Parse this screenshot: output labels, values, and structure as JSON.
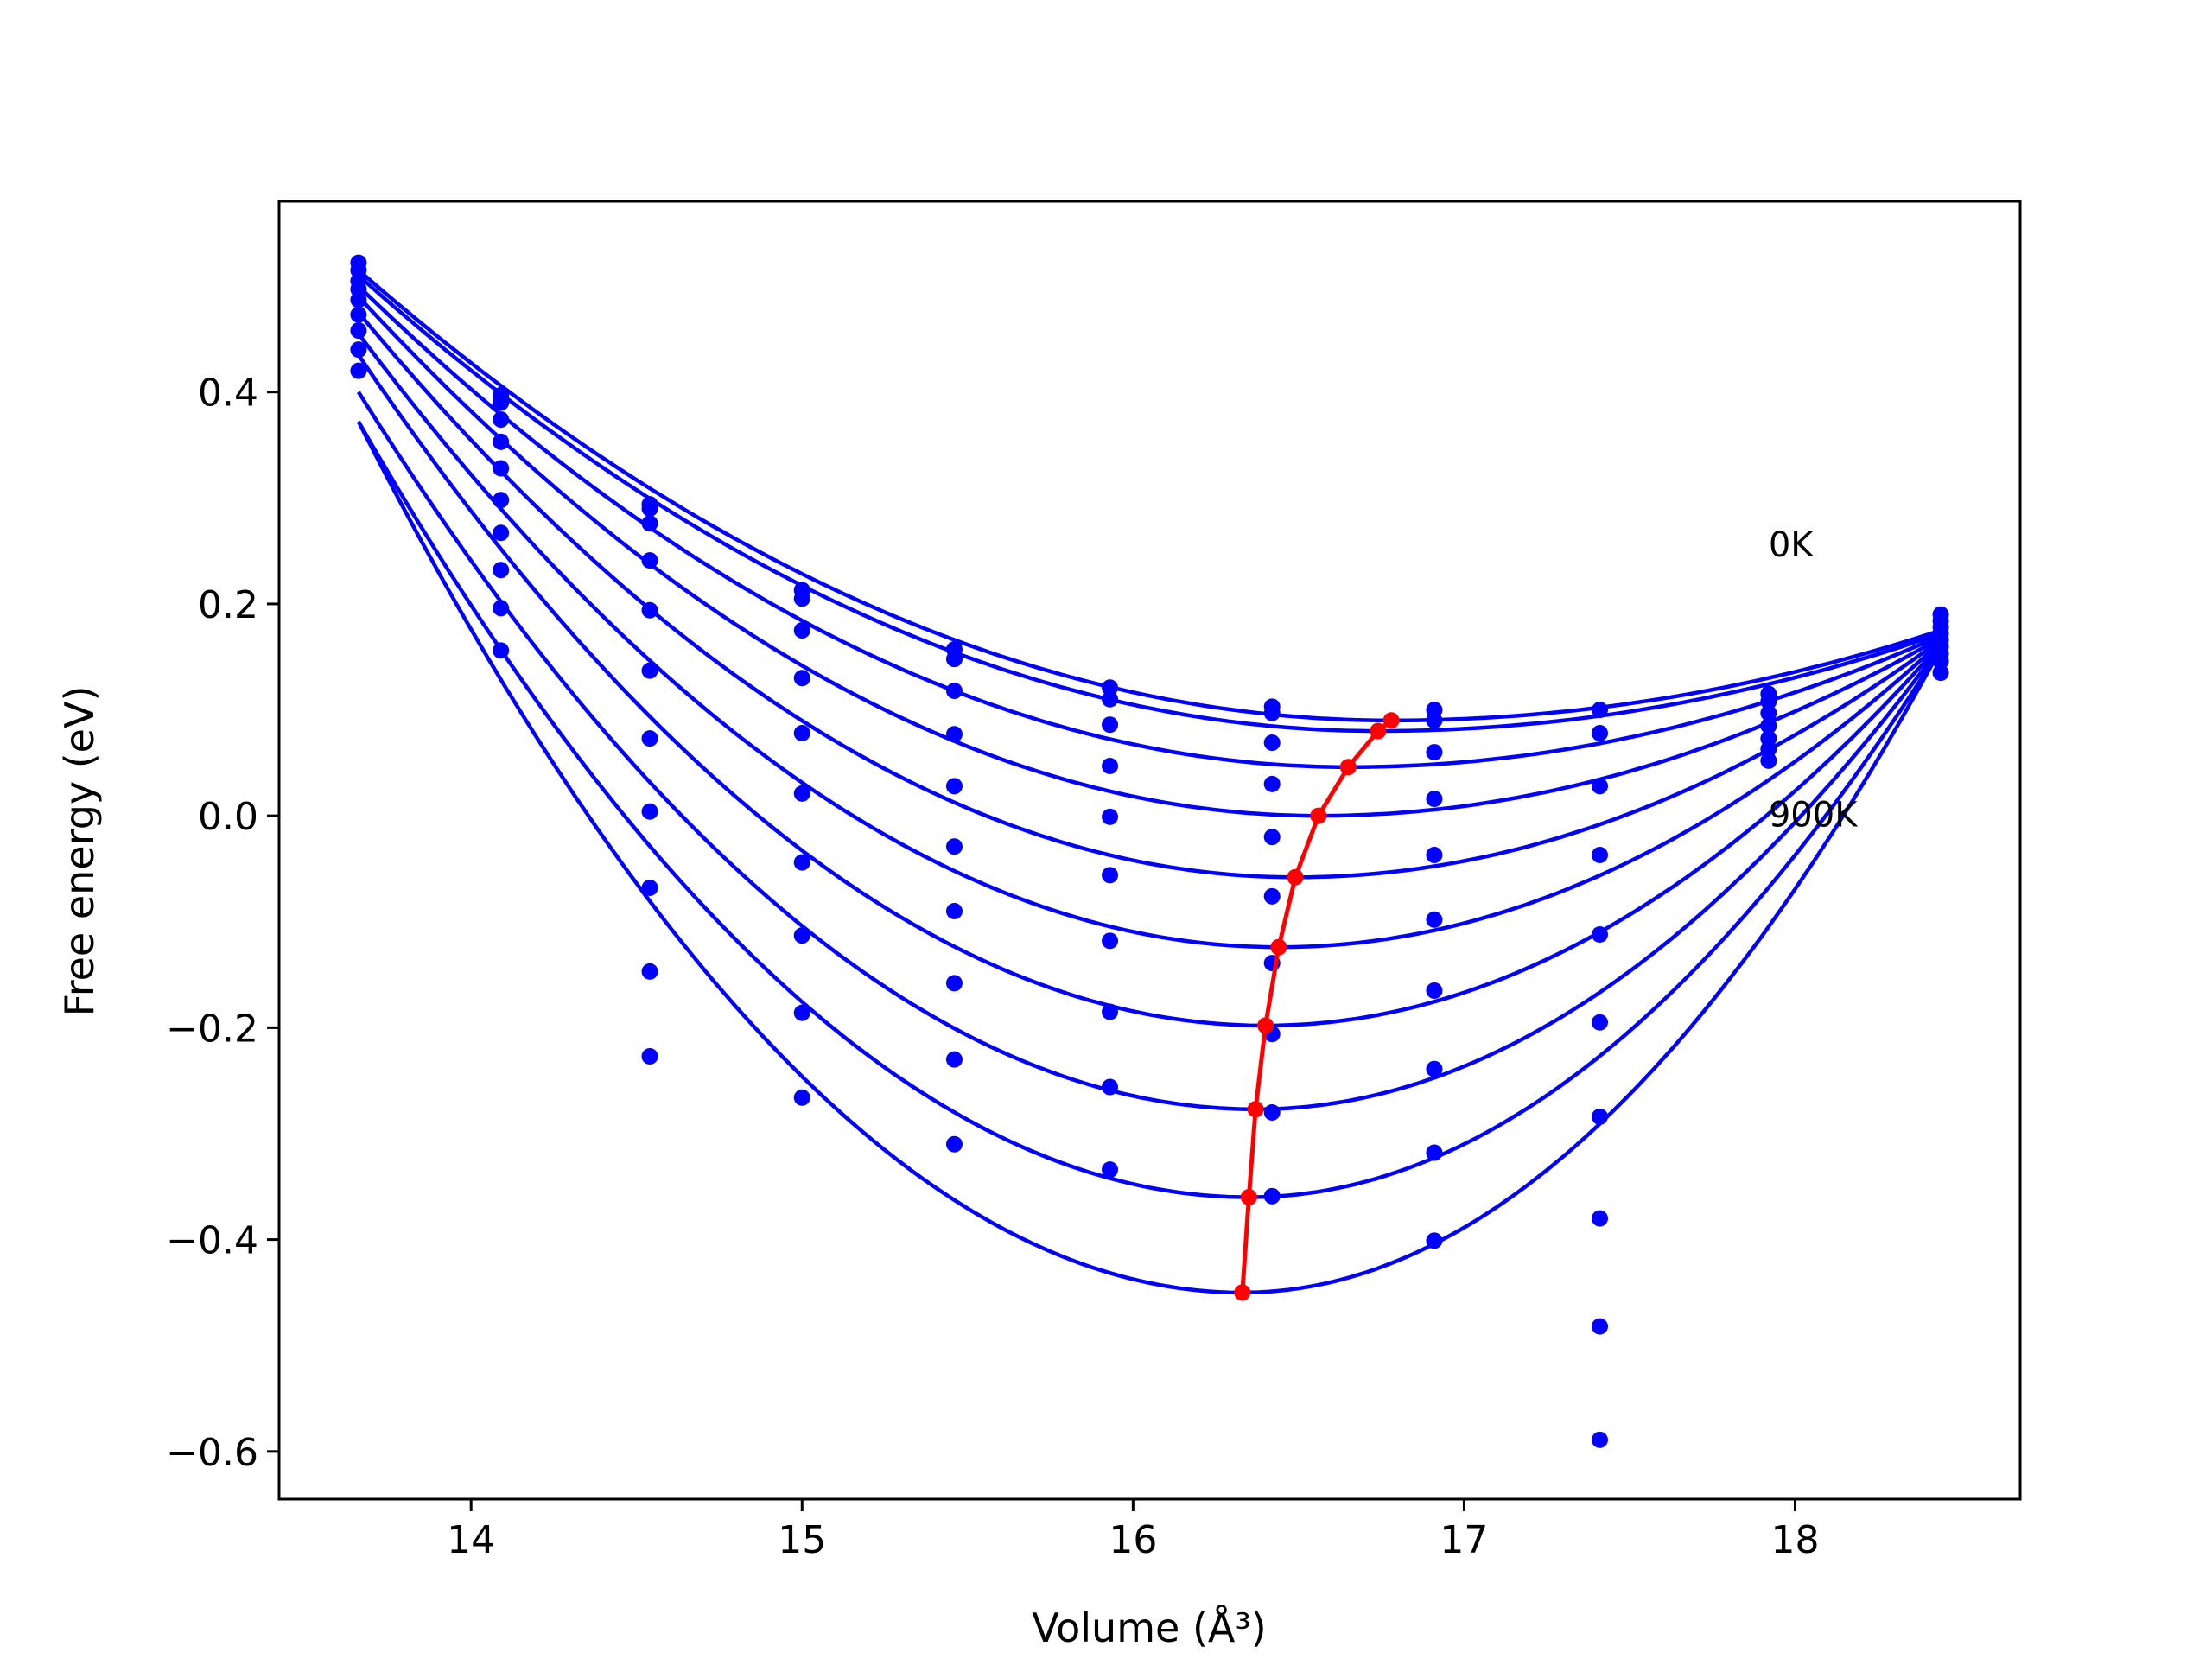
{
  "chart_data": {
    "type": "scatter",
    "title": "",
    "xlabel": "Volume",
    "xlabel_unit": "(Å³)",
    "ylabel": "Free energy (eV)",
    "xlim": [
      13.42,
      18.68
    ],
    "ylim": [
      -0.645,
      0.58
    ],
    "xticks": [
      14,
      15,
      16,
      17,
      18
    ],
    "xtick_labels": [
      "14",
      "15",
      "16",
      "17",
      "18"
    ],
    "yticks": [
      -0.6,
      -0.4,
      -0.2,
      0.0,
      0.2,
      0.4
    ],
    "ytick_labels": [
      "−0.6",
      "−0.4",
      "−0.2",
      "0.0",
      "0.2",
      "0.4"
    ],
    "grid": false,
    "legend": false,
    "annotations": [
      {
        "text": "0K",
        "x": 17.92,
        "y": 0.245
      },
      {
        "text": "900K",
        "x": 17.92,
        "y": -0.01
      }
    ],
    "curve_color": "#0000ff",
    "point_color": "#0000ff",
    "min_line_color": "#ff0000",
    "volumes": [
      13.66,
      14.09,
      14.54,
      15.0,
      15.46,
      15.93,
      16.42,
      16.91,
      17.41,
      17.92,
      18.44
    ],
    "fits": [
      {
        "xmin": 13.66,
        "xmax": 18.44,
        "vmin": 16.78,
        "emin": 0.09,
        "e_start": 0.515,
        "e_end": 0.175
      },
      {
        "xmin": 13.66,
        "xmax": 18.44,
        "vmin": 16.74,
        "emin": 0.08,
        "e_start": 0.51,
        "e_end": 0.172
      },
      {
        "xmin": 13.66,
        "xmax": 18.44,
        "vmin": 16.65,
        "emin": 0.046,
        "e_start": 0.5,
        "e_end": 0.17
      },
      {
        "xmin": 13.66,
        "xmax": 18.44,
        "vmin": 16.56,
        "emin": 0.0,
        "e_start": 0.49,
        "e_end": 0.168
      },
      {
        "xmin": 13.66,
        "xmax": 18.44,
        "vmin": 16.49,
        "emin": -0.058,
        "e_start": 0.475,
        "e_end": 0.166
      },
      {
        "xmin": 13.66,
        "xmax": 18.44,
        "vmin": 16.44,
        "emin": -0.124,
        "e_start": 0.455,
        "e_end": 0.164
      },
      {
        "xmin": 13.66,
        "xmax": 18.44,
        "vmin": 16.4,
        "emin": -0.198,
        "e_start": 0.435,
        "e_end": 0.162
      },
      {
        "xmin": 13.66,
        "xmax": 18.44,
        "vmin": 16.37,
        "emin": -0.277,
        "e_start": 0.4,
        "e_end": 0.16
      },
      {
        "xmin": 13.66,
        "xmax": 18.44,
        "vmin": 16.35,
        "emin": -0.36,
        "e_start": 0.372,
        "e_end": 0.158
      },
      {
        "xmin": 13.66,
        "xmax": 18.44,
        "vmin": 16.33,
        "emin": -0.45,
        "e_start": 0.372,
        "e_end": 0.158
      }
    ],
    "points": [
      {
        "x": 13.66,
        "y": [
          0.522,
          0.515,
          0.505,
          0.497,
          0.487,
          0.473,
          0.458,
          0.44,
          0.42
        ]
      },
      {
        "x": 14.09,
        "y": [
          0.397,
          0.39,
          0.374,
          0.353,
          0.328,
          0.298,
          0.267,
          0.232,
          0.196,
          0.156
        ]
      },
      {
        "x": 14.54,
        "y": [
          0.294,
          0.29,
          0.276,
          0.241,
          0.194,
          0.137,
          0.073,
          0.004,
          -0.068,
          -0.147,
          -0.227
        ]
      },
      {
        "x": 15.0,
        "y": [
          0.213,
          0.205,
          0.175,
          0.13,
          0.078,
          0.021,
          -0.044,
          -0.113,
          -0.186,
          -0.266
        ]
      },
      {
        "x": 15.46,
        "y": [
          0.157,
          0.148,
          0.118,
          0.077,
          0.028,
          -0.029,
          -0.09,
          -0.158,
          -0.23,
          -0.31
        ]
      },
      {
        "x": 15.93,
        "y": [
          0.121,
          0.11,
          0.086,
          0.047,
          -0.001,
          -0.056,
          -0.118,
          -0.185,
          -0.256,
          -0.334
        ]
      },
      {
        "x": 16.42,
        "y": [
          0.103,
          0.097,
          0.069,
          0.03,
          -0.02,
          -0.076,
          -0.139,
          -0.206,
          -0.28,
          -0.359
        ]
      },
      {
        "x": 16.91,
        "y": [
          0.1,
          0.09,
          0.06,
          0.016,
          -0.037,
          -0.098,
          -0.165,
          -0.239,
          -0.318,
          -0.401
        ]
      },
      {
        "x": 17.41,
        "y": [
          0.1,
          0.078,
          0.028,
          -0.037,
          -0.112,
          -0.195,
          -0.284,
          -0.38,
          -0.482,
          -0.589
        ]
      },
      {
        "x": 17.92,
        "y": [
          0.115,
          0.108,
          0.097,
          0.085,
          0.073,
          0.063,
          0.052
        ]
      },
      {
        "x": 18.44,
        "y": [
          0.19,
          0.184,
          0.178,
          0.172,
          0.166,
          0.16,
          0.153,
          0.146,
          0.135
        ]
      }
    ],
    "min_line": {
      "x": [
        16.78,
        16.74,
        16.65,
        16.56,
        16.49,
        16.44,
        16.4,
        16.37,
        16.35,
        16.33
      ],
      "y": [
        0.09,
        0.08,
        0.046,
        0.0,
        -0.058,
        -0.124,
        -0.198,
        -0.277,
        -0.36,
        -0.45
      ]
    }
  }
}
